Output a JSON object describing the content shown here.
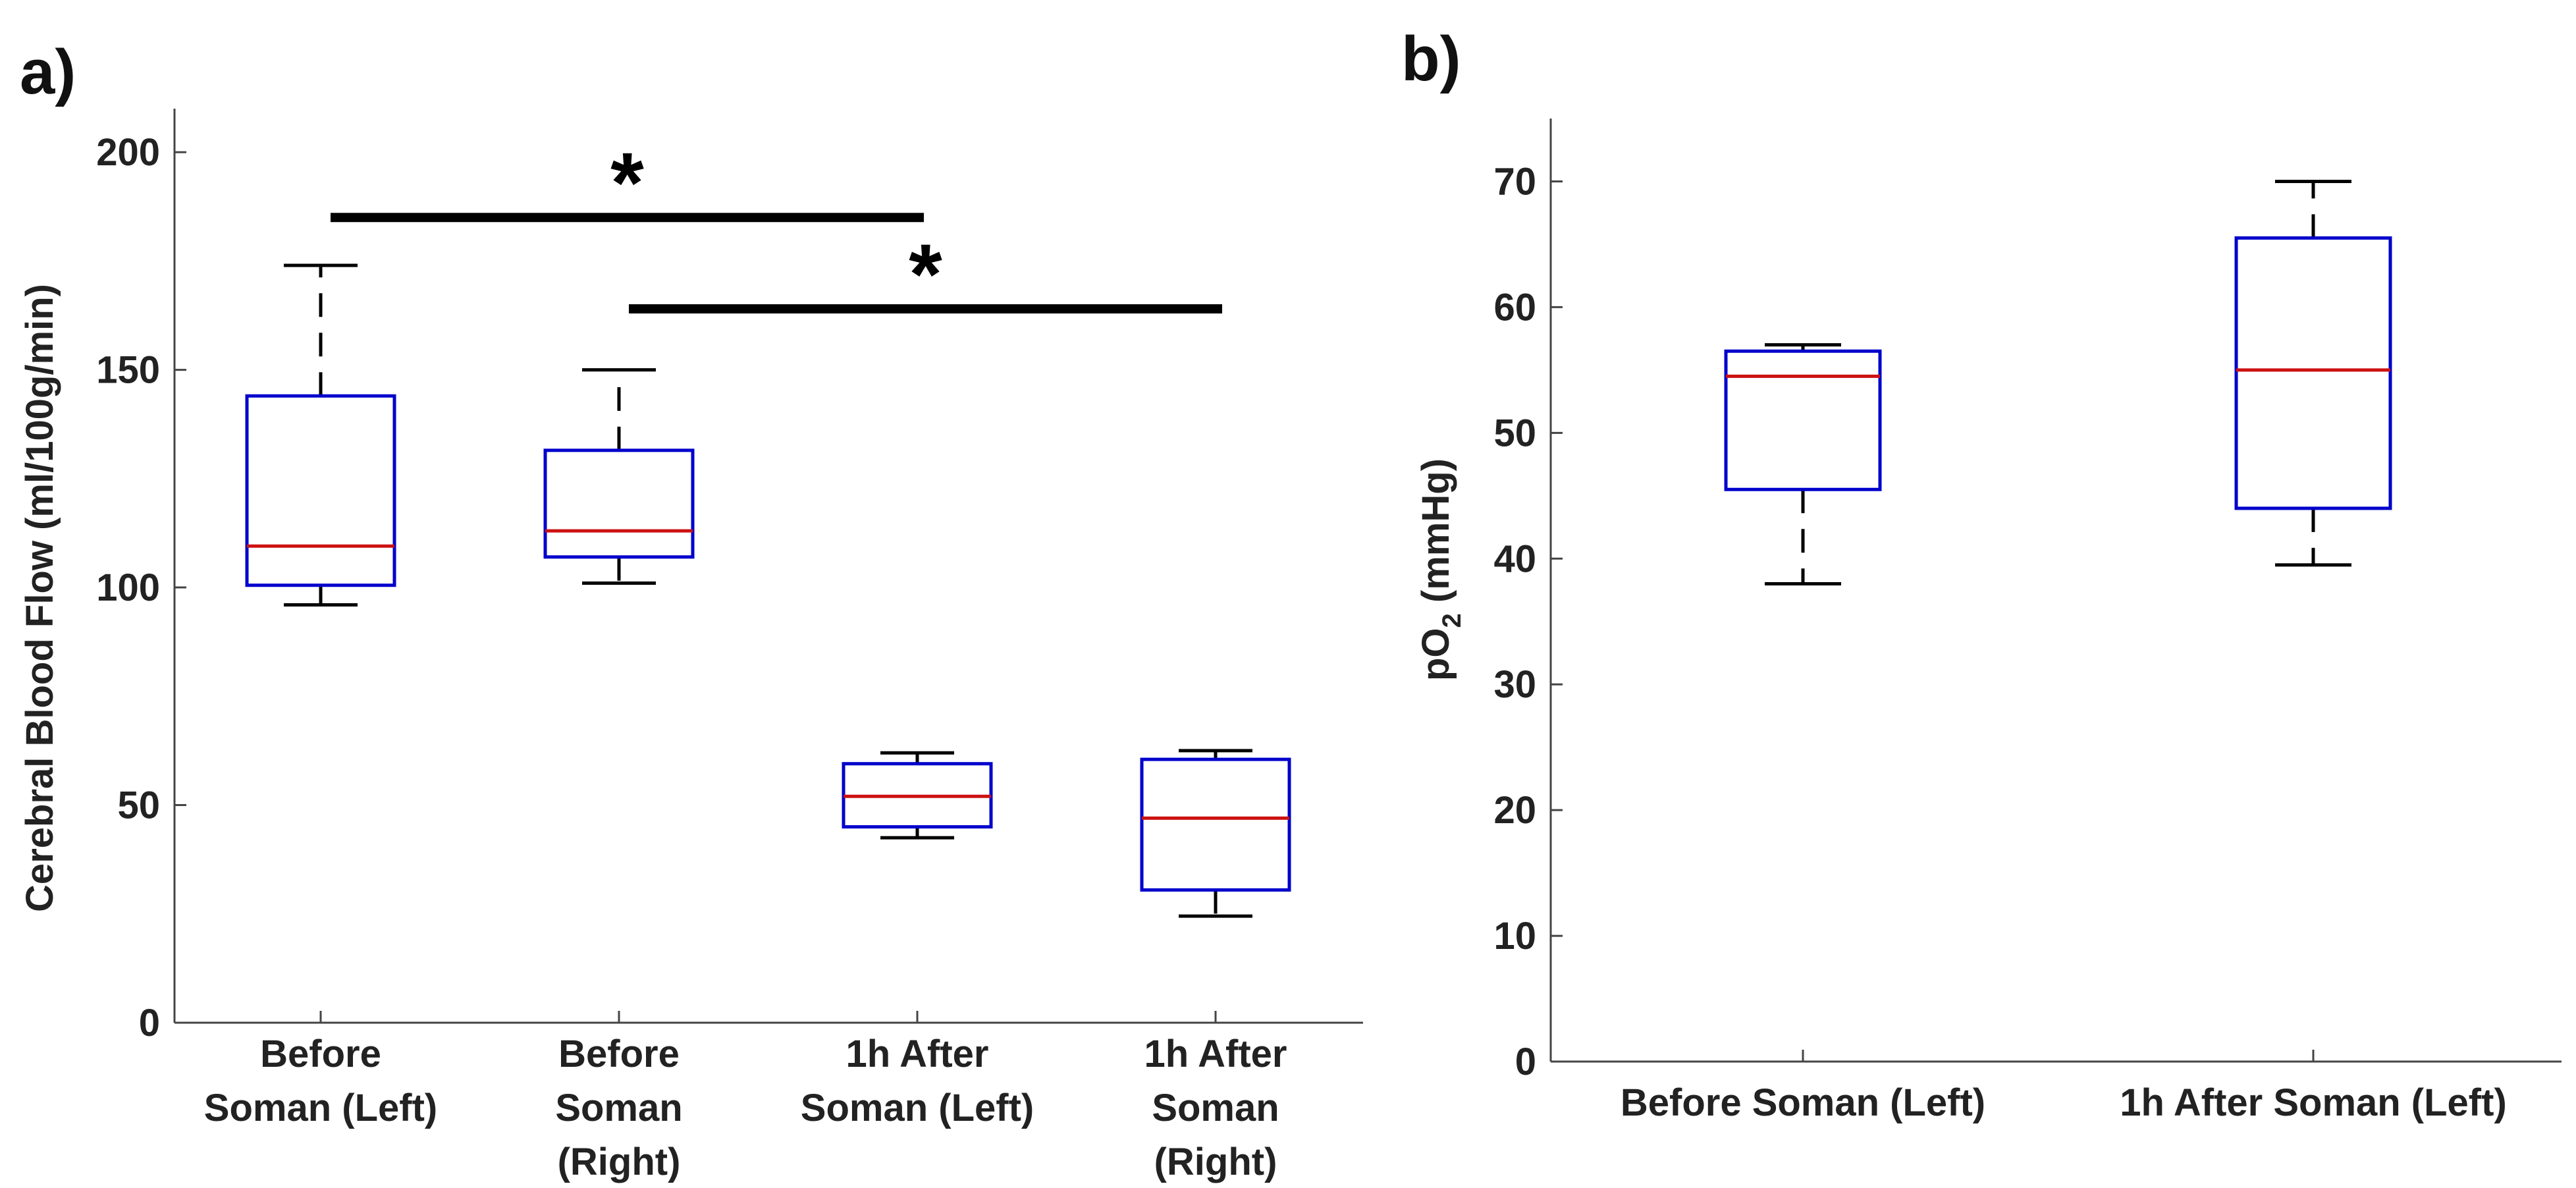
{
  "chart_data": [
    {
      "type": "box",
      "panel_label": "a)",
      "ylabel": "Cerebral Blood Flow (ml/100g/min)",
      "ylim": [
        0,
        210
      ],
      "yticks": [
        0,
        50,
        100,
        150,
        200
      ],
      "categories": [
        [
          "Before",
          "Soman (Left)"
        ],
        [
          "Before",
          "Soman",
          "(Right)"
        ],
        [
          "1h After",
          "Soman (Left)"
        ],
        [
          "1h After",
          "Soman",
          "(Right)"
        ]
      ],
      "boxes": [
        {
          "whisker_low": 96,
          "q1": 100.5,
          "median": 109.5,
          "q3": 144,
          "whisker_high": 174
        },
        {
          "whisker_low": 101,
          "q1": 107,
          "median": 113,
          "q3": 131.5,
          "whisker_high": 150
        },
        {
          "whisker_low": 42.5,
          "q1": 45,
          "median": 52,
          "q3": 59.5,
          "whisker_high": 62
        },
        {
          "whisker_low": 24.5,
          "q1": 30.5,
          "median": 47,
          "q3": 60.5,
          "whisker_high": 62.5
        }
      ],
      "significance": [
        {
          "from": 0,
          "to": 2,
          "y": 185,
          "label": "*"
        },
        {
          "from": 1,
          "to": 3,
          "y": 164,
          "label": "*"
        }
      ],
      "colors": {
        "box": "#0000cc",
        "median": "#cc1111",
        "whisker": "#000000"
      }
    },
    {
      "type": "box",
      "panel_label": "b)",
      "ylabel_main": "pO",
      "ylabel_sub": "2",
      "ylabel_tail": " (mmHg)",
      "ylim": [
        0,
        75
      ],
      "yticks": [
        0,
        10,
        20,
        30,
        40,
        50,
        60,
        70
      ],
      "categories": [
        [
          "Before Soman (Left)"
        ],
        [
          "1h After Soman (Left)"
        ]
      ],
      "boxes": [
        {
          "whisker_low": 38,
          "q1": 45.5,
          "median": 54.5,
          "q3": 56.5,
          "whisker_high": 57
        },
        {
          "whisker_low": 39.5,
          "q1": 44,
          "median": 55,
          "q3": 65.5,
          "whisker_high": 70
        }
      ],
      "colors": {
        "box": "#0000cc",
        "median": "#cc1111",
        "whisker": "#000000"
      }
    }
  ]
}
